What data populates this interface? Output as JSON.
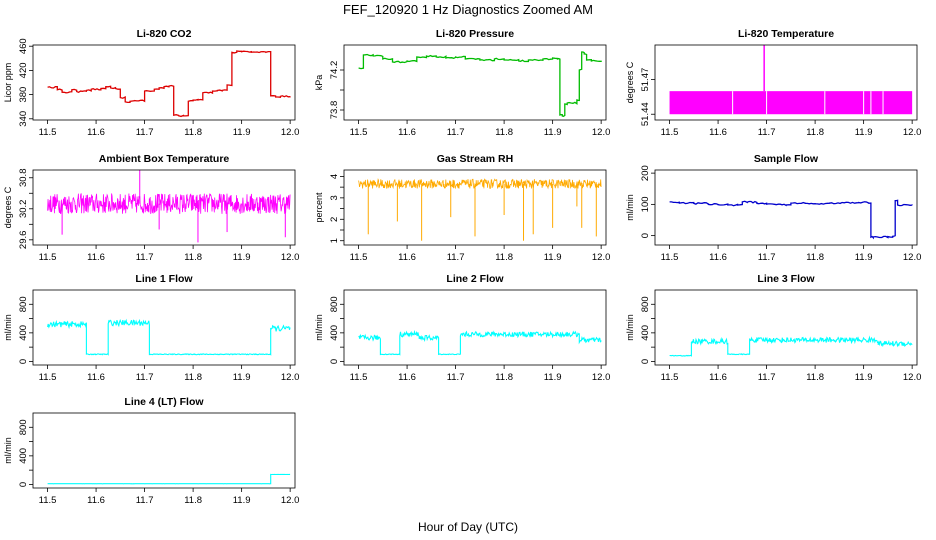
{
  "title": "FEF_120920  1 Hz Diagnostics Zoomed AM",
  "xlabel": "Hour of Day (UTC)",
  "chart_data": [
    {
      "type": "line",
      "title": "Li-820 CO2",
      "ylabel": "Licor ppm",
      "color": "#dd0000",
      "xlim": [
        11.47,
        12.01
      ],
      "ylim": [
        338,
        462
      ],
      "yticks": [
        340,
        380,
        420,
        460
      ],
      "xticks": [
        11.5,
        11.6,
        11.7,
        11.8,
        11.9,
        12.0
      ],
      "series": [
        {
          "x": [
            11.5,
            11.52,
            11.53,
            11.55,
            11.56,
            11.58,
            11.59,
            11.61,
            11.62,
            11.63,
            11.64,
            11.65,
            11.66,
            11.67,
            11.68,
            11.7,
            11.72,
            11.73,
            11.74,
            11.75,
            11.76,
            11.77,
            11.78,
            11.79,
            11.8,
            11.81,
            11.82,
            11.84,
            11.85,
            11.86,
            11.87,
            11.88,
            11.89,
            11.9,
            11.92,
            11.94,
            11.95,
            11.96,
            11.97,
            11.98,
            12.0
          ],
          "y": [
            392,
            388,
            384,
            388,
            385,
            387,
            389,
            390,
            393,
            391,
            390,
            375,
            368,
            369,
            370,
            386,
            389,
            391,
            393,
            394,
            346,
            345,
            345,
            369,
            371,
            371,
            383,
            386,
            387,
            387,
            396,
            450,
            452,
            451,
            450,
            451,
            450,
            378,
            376,
            377,
            377
          ]
        }
      ]
    },
    {
      "type": "line",
      "title": "Li-820 Pressure",
      "ylabel": "kPa",
      "color": "#00bb00",
      "xlim": [
        11.47,
        12.01
      ],
      "ylim": [
        73.7,
        74.45
      ],
      "yticks": [
        73.8,
        74.2
      ],
      "extra_ticks": [
        74.0
      ],
      "xticks": [
        11.5,
        11.6,
        11.7,
        11.8,
        11.9,
        12.0
      ],
      "series": [
        {
          "x": [
            11.5,
            11.51,
            11.53,
            11.55,
            11.57,
            11.59,
            11.6,
            11.62,
            11.64,
            11.66,
            11.68,
            11.7,
            11.72,
            11.75,
            11.78,
            11.8,
            11.83,
            11.85,
            11.88,
            11.9,
            11.91,
            11.915,
            11.92,
            11.925,
            11.93,
            11.95,
            11.955,
            11.96,
            11.965,
            11.97,
            11.98,
            12.0
          ],
          "y": [
            74.22,
            74.35,
            74.34,
            74.31,
            74.28,
            74.28,
            74.29,
            74.33,
            74.34,
            74.33,
            74.32,
            74.33,
            74.31,
            74.3,
            74.31,
            74.3,
            74.29,
            74.3,
            74.31,
            74.32,
            74.31,
            73.75,
            73.74,
            73.86,
            73.87,
            73.9,
            74.2,
            74.38,
            74.36,
            74.3,
            74.29,
            74.28
          ]
        }
      ]
    },
    {
      "type": "area",
      "title": "Li-820 Temperature",
      "ylabel": "degrees C",
      "color": "#ff00ff",
      "xlim": [
        11.47,
        12.01
      ],
      "ylim": [
        51.435,
        51.5
      ],
      "yticks": [
        51.44,
        51.47
      ],
      "xticks": [
        11.5,
        11.6,
        11.7,
        11.8,
        11.9,
        12.0
      ],
      "band": [
        51.44,
        51.46
      ],
      "spike": {
        "x": 11.695,
        "y": 51.5
      },
      "gaps": [
        11.63,
        11.7,
        11.82,
        11.9,
        11.915,
        11.94
      ]
    },
    {
      "type": "line",
      "title": "Ambient Box Temperature",
      "ylabel": "degrees C",
      "color": "#ff00ff",
      "xlim": [
        11.47,
        12.01
      ],
      "ylim": [
        29.5,
        30.95
      ],
      "yticks": [
        29.6,
        30.2,
        30.8
      ],
      "extra_ticks": [
        29.9,
        30.5
      ],
      "xticks": [
        11.5,
        11.6,
        11.7,
        11.8,
        11.9,
        12.0
      ],
      "noise": {
        "mean": 30.3,
        "amp": 0.2,
        "spikes": [
          [
            11.53,
            29.7
          ],
          [
            11.69,
            30.95
          ],
          [
            11.73,
            29.8
          ],
          [
            11.81,
            29.55
          ],
          [
            11.87,
            29.75
          ],
          [
            11.99,
            29.65
          ]
        ]
      }
    },
    {
      "type": "line",
      "title": "Gas Stream RH",
      "ylabel": "percent",
      "color": "#ffaa00",
      "xlim": [
        11.47,
        12.01
      ],
      "ylim": [
        0.8,
        4.3
      ],
      "yticks": [
        1.0,
        2.0,
        3.0,
        4.0
      ],
      "extra_ticks": [
        1.5,
        2.5,
        3.5
      ],
      "xticks": [
        11.5,
        11.6,
        11.7,
        11.8,
        11.9,
        12.0
      ],
      "noise": {
        "mean": 3.65,
        "amp": 0.22,
        "spikes": [
          [
            11.52,
            1.3
          ],
          [
            11.58,
            1.9
          ],
          [
            11.63,
            1.0
          ],
          [
            11.69,
            2.1
          ],
          [
            11.74,
            1.2
          ],
          [
            11.8,
            2.2
          ],
          [
            11.84,
            1.0
          ],
          [
            11.86,
            1.3
          ],
          [
            11.9,
            1.6
          ],
          [
            11.95,
            2.6
          ],
          [
            11.96,
            1.6
          ],
          [
            11.99,
            1.2
          ]
        ]
      }
    },
    {
      "type": "line",
      "title": "Sample Flow",
      "ylabel": "ml/min",
      "color": "#0000cc",
      "xlim": [
        11.47,
        12.01
      ],
      "ylim": [
        -30,
        210
      ],
      "yticks": [
        0,
        100,
        200
      ],
      "xticks": [
        11.5,
        11.6,
        11.7,
        11.8,
        11.9,
        12.0
      ],
      "series": [
        {
          "x": [
            11.5,
            11.52,
            11.55,
            11.58,
            11.6,
            11.62,
            11.64,
            11.65,
            11.66,
            11.68,
            11.7,
            11.72,
            11.74,
            11.75,
            11.78,
            11.8,
            11.83,
            11.86,
            11.89,
            11.91,
            11.915,
            11.92,
            11.95,
            11.96,
            11.965,
            11.97,
            12.0
          ],
          "y": [
            108,
            104,
            103,
            100,
            99,
            98,
            98,
            108,
            107,
            103,
            101,
            99,
            98,
            104,
            103,
            102,
            104,
            105,
            106,
            104,
            -5,
            -4,
            -3,
            -2,
            112,
            98,
            97
          ]
        }
      ]
    },
    {
      "type": "line",
      "title": "Line 1 Flow",
      "ylabel": "ml/min",
      "color": "#00ffff",
      "xlim": [
        11.47,
        12.01
      ],
      "ylim": [
        -50,
        1000
      ],
      "yticks": [
        0,
        400,
        800
      ],
      "extra_ticks": [
        200,
        600
      ],
      "xticks": [
        11.5,
        11.6,
        11.7,
        11.8,
        11.9,
        12.0
      ],
      "steps": [
        [
          11.5,
          520
        ],
        [
          11.58,
          100
        ],
        [
          11.625,
          540
        ],
        [
          11.71,
          100
        ],
        [
          11.96,
          460
        ],
        [
          12.0,
          460
        ]
      ],
      "noise_amp": 40
    },
    {
      "type": "line",
      "title": "Line 2 Flow",
      "ylabel": "ml/min",
      "color": "#00ffff",
      "xlim": [
        11.47,
        12.01
      ],
      "ylim": [
        -50,
        1000
      ],
      "yticks": [
        0,
        400,
        800
      ],
      "extra_ticks": [
        200,
        600
      ],
      "xticks": [
        11.5,
        11.6,
        11.7,
        11.8,
        11.9,
        12.0
      ],
      "steps": [
        [
          11.5,
          330
        ],
        [
          11.545,
          100
        ],
        [
          11.585,
          380
        ],
        [
          11.625,
          330
        ],
        [
          11.665,
          100
        ],
        [
          11.71,
          380
        ],
        [
          11.955,
          300
        ],
        [
          12.0,
          300
        ]
      ],
      "noise_amp": 35
    },
    {
      "type": "line",
      "title": "Line 3 Flow",
      "ylabel": "ml/min",
      "color": "#00ffff",
      "xlim": [
        11.47,
        12.01
      ],
      "ylim": [
        -50,
        1000
      ],
      "yticks": [
        0,
        400,
        800
      ],
      "extra_ticks": [
        200,
        600
      ],
      "xticks": [
        11.5,
        11.6,
        11.7,
        11.8,
        11.9,
        12.0
      ],
      "steps": [
        [
          11.5,
          80
        ],
        [
          11.545,
          280
        ],
        [
          11.62,
          100
        ],
        [
          11.665,
          300
        ],
        [
          11.93,
          250
        ],
        [
          12.0,
          250
        ]
      ],
      "noise_amp": 35
    },
    {
      "type": "line",
      "title": "Line 4 (LT) Flow",
      "ylabel": "ml/min",
      "color": "#00ffff",
      "xlim": [
        11.47,
        12.01
      ],
      "ylim": [
        -50,
        1000
      ],
      "yticks": [
        0,
        400,
        800
      ],
      "extra_ticks": [
        200,
        600
      ],
      "xticks": [
        11.5,
        11.6,
        11.7,
        11.8,
        11.9,
        12.0
      ],
      "steps": [
        [
          11.5,
          10
        ],
        [
          11.96,
          140
        ],
        [
          12.0,
          140
        ]
      ],
      "noise_amp": 4
    }
  ]
}
